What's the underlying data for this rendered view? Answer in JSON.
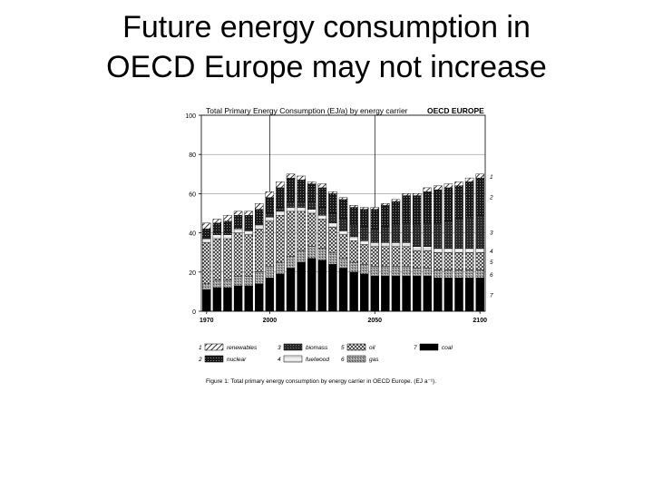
{
  "slide": {
    "title_line1": "Future energy consumption in",
    "title_line2": "OECD Europe may not increase"
  },
  "chart_data": {
    "type": "bar",
    "stacked": true,
    "title": "Total Primary Energy Consumption (EJ/a) by energy carrier",
    "region_label": "OECD EUROPE",
    "caption": "Figure 1: Total primary energy consumption by energy carrier in OECD Europe. (EJ a⁻¹).",
    "xlabel": "",
    "ylabel": "",
    "ylim": [
      0,
      100
    ],
    "yticks": [
      0,
      20,
      40,
      60,
      80,
      100
    ],
    "xticks": [
      "1970",
      "2000",
      "2050",
      "2100"
    ],
    "grid_x_at": [
      "2000",
      "2050"
    ],
    "categories": [
      "1970",
      "1975",
      "1980",
      "1985",
      "1990",
      "1995",
      "2000",
      "2005",
      "2010",
      "2015",
      "2020",
      "2025",
      "2030",
      "2035",
      "2040",
      "2045",
      "2050",
      "2055",
      "2060",
      "2065",
      "2070",
      "2075",
      "2080",
      "2085",
      "2090",
      "2095",
      "2100"
    ],
    "series": [
      {
        "name": "coal",
        "key": "7",
        "values": [
          11,
          12,
          12,
          13,
          13,
          14,
          17,
          19,
          22,
          25,
          27,
          26,
          24,
          22,
          20,
          19,
          18,
          18,
          18,
          18,
          18,
          18,
          17,
          17,
          17,
          17,
          17
        ]
      },
      {
        "name": "gas",
        "key": "6",
        "values": [
          3,
          4,
          4,
          5,
          5,
          6,
          6,
          6,
          6,
          6,
          6,
          6,
          6,
          5,
          5,
          5,
          5,
          5,
          5,
          5,
          4,
          4,
          4,
          4,
          4,
          4,
          4
        ]
      },
      {
        "name": "oil",
        "key": "5",
        "values": [
          21,
          21,
          21,
          22,
          21,
          22,
          23,
          24,
          23,
          20,
          17,
          15,
          13,
          12,
          11,
          10,
          10,
          10,
          10,
          10,
          9,
          9,
          9,
          9,
          9,
          9,
          9
        ]
      },
      {
        "name": "fuelwood",
        "key": "4",
        "values": [
          2,
          2,
          2,
          2,
          2,
          2,
          2,
          2,
          2,
          2,
          2,
          2,
          2,
          2,
          2,
          2,
          2,
          2,
          2,
          2,
          2,
          2,
          2,
          2,
          2,
          2,
          2
        ]
      },
      {
        "name": "biomass",
        "key": "3",
        "values": [
          1,
          1,
          1,
          1,
          1,
          1,
          2,
          2,
          3,
          3,
          4,
          4,
          5,
          6,
          6,
          7,
          7,
          8,
          9,
          10,
          11,
          12,
          13,
          14,
          15,
          16,
          17
        ]
      },
      {
        "name": "nuclear",
        "key": "2",
        "values": [
          4,
          5,
          6,
          6,
          7,
          7,
          8,
          10,
          12,
          11,
          9,
          10,
          10,
          10,
          9,
          9,
          10,
          11,
          12,
          14,
          15,
          16,
          17,
          17,
          17,
          18,
          19
        ]
      },
      {
        "name": "renewables",
        "key": "1",
        "values": [
          3,
          2,
          3,
          2,
          2,
          3,
          3,
          3,
          2,
          2,
          1,
          2,
          1,
          1,
          1,
          1,
          1,
          1,
          1,
          1,
          1,
          2,
          2,
          2,
          2,
          2,
          2
        ]
      }
    ],
    "right_labels": [
      "1",
      "2",
      "3",
      "4",
      "5",
      "6",
      "7"
    ],
    "legend": {
      "placement": "bottom",
      "items": [
        {
          "key": "1",
          "label": "renewables",
          "series": "renewables"
        },
        {
          "key": "3",
          "label": "biomass",
          "series": "biomass"
        },
        {
          "key": "5",
          "label": "oil",
          "series": "oil"
        },
        {
          "key": "7",
          "label": "coal",
          "series": "coal"
        },
        {
          "key": "2",
          "label": "nuclear",
          "series": "nuclear"
        },
        {
          "key": "4",
          "label": "fuelwood",
          "series": "fuelwood"
        },
        {
          "key": "6",
          "label": "gas",
          "series": "gas"
        }
      ]
    }
  }
}
